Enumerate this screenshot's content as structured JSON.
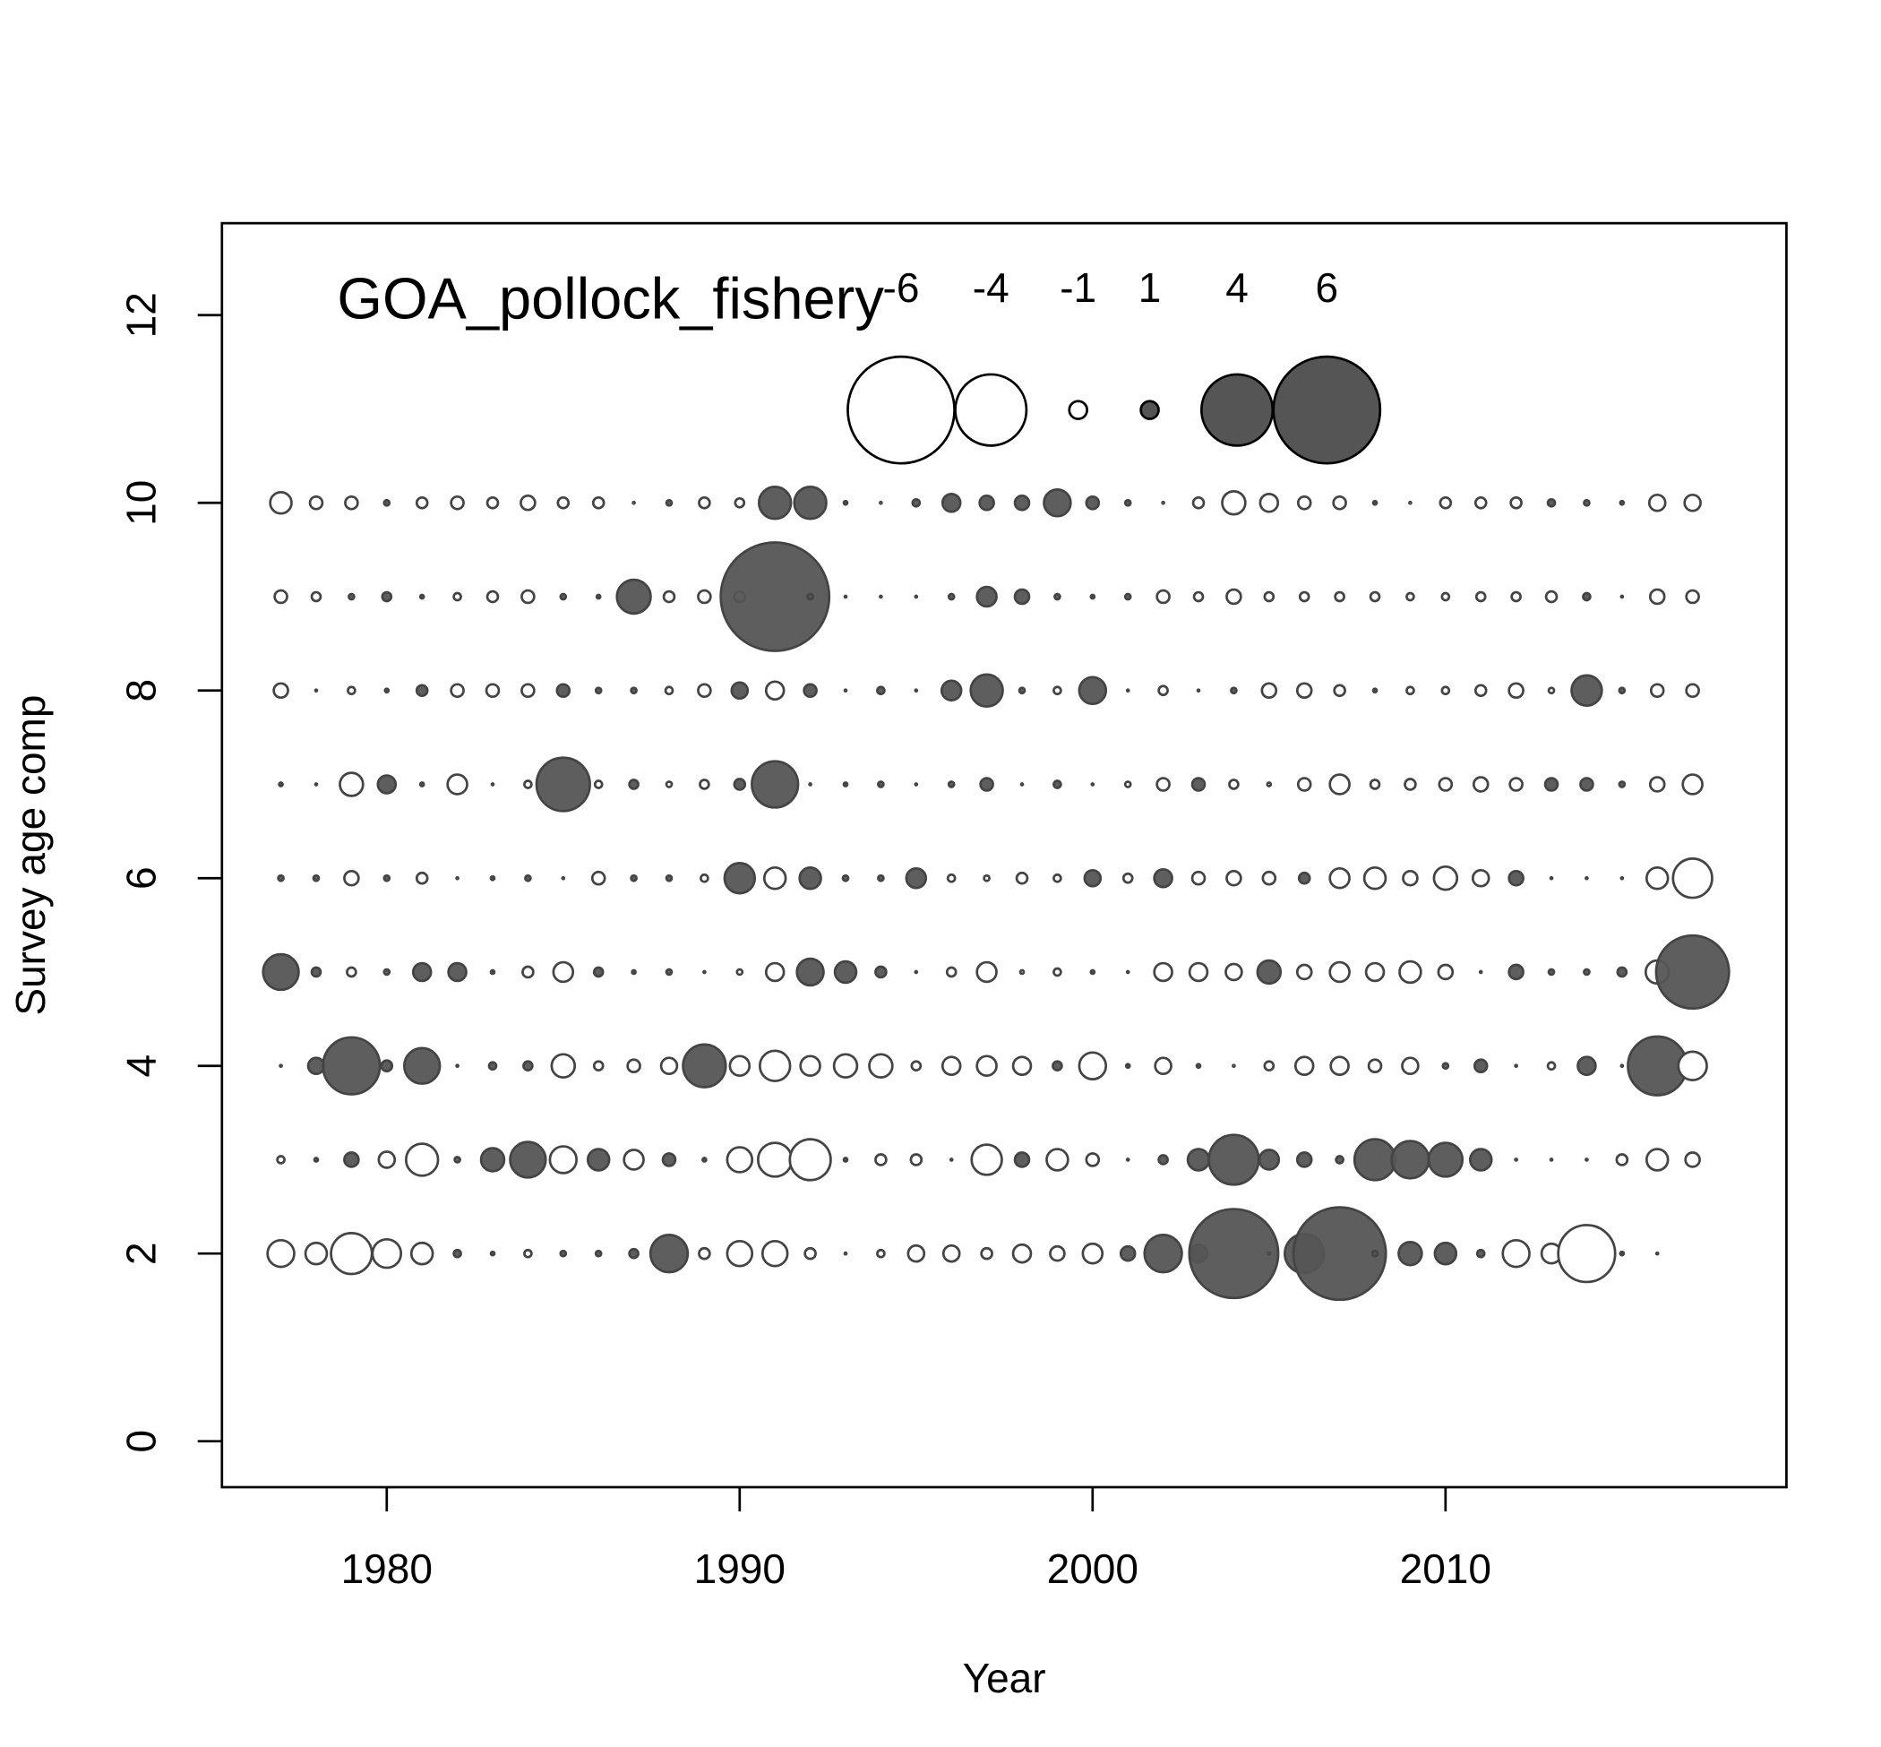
{
  "chart_data": {
    "type": "bubble",
    "title": "GOA_pollock_fishery",
    "xlabel": "Year",
    "ylabel": "Survey age comp",
    "xlim": [
      1975.33,
      2019.66
    ],
    "ylim": [
      -0.49,
      12.98
    ],
    "xticks": [
      1980,
      1990,
      2000,
      2010
    ],
    "yticks": [
      0,
      2,
      4,
      6,
      8,
      10,
      12
    ],
    "positive_color": "#555555",
    "negative_color": "#ffffff",
    "legend_values": [
      -6,
      -4,
      -1,
      1,
      4,
      6
    ],
    "x": [
      1977,
      1978,
      1979,
      1980,
      1981,
      1982,
      1983,
      1984,
      1985,
      1986,
      1987,
      1988,
      1989,
      1990,
      1991,
      1992,
      1993,
      1994,
      1995,
      1996,
      1997,
      1998,
      1999,
      2000,
      2001,
      2002,
      2003,
      2004,
      2005,
      2006,
      2007,
      2008,
      2009,
      2010,
      2011,
      2012,
      2013,
      2014,
      2015,
      2016,
      2017
    ],
    "ages": [
      2,
      3,
      4,
      5,
      6,
      7,
      8,
      9,
      10
    ],
    "residuals": [
      [
        -1.5,
        -1.2,
        -2.3,
        -1.6,
        -1.2,
        0.4,
        0.2,
        -0.4,
        0.3,
        0.3,
        0.5,
        2.1,
        -0.6,
        -1.4,
        -1.4,
        -0.6,
        0.1,
        -0.4,
        -0.9,
        -0.9,
        -0.6,
        -1.0,
        -0.8,
        -1.1,
        0.8,
        2.1,
        1.0,
        5.0,
        -0.1,
        2.2,
        5.2,
        0.3,
        1.3,
        1.2,
        0.4,
        -1.5,
        -1.1,
        -3.2,
        0.2,
        0.1,
        null
      ],
      [
        -0.4,
        0.2,
        0.8,
        -0.9,
        -1.8,
        0.3,
        1.3,
        2.0,
        -1.5,
        1.2,
        -1.1,
        0.7,
        0.2,
        -1.4,
        -1.9,
        -2.3,
        0.2,
        -0.6,
        -0.6,
        0.1,
        -1.7,
        0.8,
        -1.2,
        -0.7,
        0.1,
        0.5,
        1.2,
        2.8,
        1.1,
        0.8,
        0.4,
        2.3,
        2.1,
        1.9,
        1.2,
        0.1,
        0.1,
        0.1,
        -0.6,
        -1.2,
        -0.8
      ],
      [
        0.1,
        0.9,
        3.2,
        0.6,
        2.0,
        0.1,
        0.4,
        0.5,
        -1.3,
        -0.5,
        -0.7,
        -0.9,
        2.4,
        -1.1,
        -1.7,
        -1.1,
        -1.3,
        -1.3,
        -0.5,
        -1.0,
        -1.1,
        -1.0,
        0.5,
        -1.5,
        0.2,
        -0.9,
        0.2,
        -0.1,
        -0.5,
        -1.0,
        -1.0,
        -0.7,
        -0.9,
        0.3,
        0.7,
        0.1,
        -0.4,
        1.0,
        0.1,
        3.3,
        -1.6
      ],
      [
        2.0,
        0.5,
        -0.5,
        0.3,
        1.0,
        1.0,
        0.2,
        -0.6,
        -1.1,
        0.5,
        0.2,
        0.3,
        0.1,
        -0.3,
        -1.0,
        1.5,
        1.2,
        0.6,
        0.1,
        -0.5,
        -1.1,
        -0.2,
        -0.4,
        0.2,
        0.1,
        -1.0,
        -1.0,
        -0.9,
        1.3,
        -0.8,
        -1.1,
        -1.0,
        -1.2,
        -0.8,
        0.1,
        0.8,
        0.3,
        0.3,
        0.5,
        -1.3,
        4.1
      ],
      [
        0.3,
        0.3,
        -0.8,
        0.3,
        -0.6,
        0.1,
        0.2,
        0.3,
        0.1,
        -0.7,
        0.3,
        0.3,
        -0.4,
        1.7,
        -1.2,
        1.2,
        0.3,
        0.3,
        1.1,
        -0.4,
        -0.3,
        -0.6,
        -0.4,
        0.9,
        -0.5,
        1.0,
        -0.7,
        -0.8,
        -0.7,
        0.6,
        -1.1,
        -1.2,
        -0.8,
        -1.3,
        -0.9,
        0.8,
        0.1,
        0.1,
        0.1,
        -1.2,
        -2.2
      ],
      [
        0.2,
        0.1,
        -1.3,
        1.0,
        0.2,
        -1.1,
        0.1,
        -0.4,
        3.0,
        -0.4,
        0.5,
        -0.3,
        -0.5,
        0.6,
        2.6,
        0.1,
        0.2,
        0.3,
        0.1,
        0.3,
        0.7,
        0.1,
        0.4,
        0.1,
        -0.3,
        -0.7,
        0.7,
        -0.5,
        -0.2,
        -0.7,
        -1.1,
        -0.5,
        -0.6,
        -0.7,
        -0.8,
        -0.7,
        0.7,
        0.7,
        0.3,
        -0.8,
        -1.1
      ],
      [
        -0.8,
        0.1,
        -0.4,
        0.2,
        0.6,
        -0.7,
        -0.7,
        -0.7,
        0.7,
        0.3,
        0.3,
        -0.4,
        -0.7,
        0.9,
        -1.0,
        0.7,
        0.1,
        0.4,
        0.1,
        1.1,
        1.8,
        0.3,
        -0.4,
        1.5,
        0.1,
        -0.5,
        0.1,
        0.3,
        -0.8,
        -0.8,
        -0.6,
        0.2,
        -0.4,
        -0.4,
        -0.6,
        -0.8,
        -0.3,
        1.7,
        0.3,
        -0.7,
        -0.7
      ],
      [
        -0.7,
        -0.5,
        0.3,
        0.5,
        0.2,
        -0.4,
        -0.6,
        -0.7,
        0.3,
        0.2,
        1.9,
        -0.6,
        -0.7,
        -0.6,
        6.1,
        0.3,
        0.1,
        0.1,
        0.1,
        0.3,
        1.1,
        0.8,
        0.3,
        0.2,
        0.3,
        -0.7,
        -0.5,
        -0.8,
        -0.5,
        -0.5,
        -0.5,
        -0.5,
        -0.4,
        -0.4,
        -0.5,
        -0.5,
        -0.6,
        0.4,
        0.1,
        -0.8,
        -0.7
      ],
      [
        -1.2,
        -0.7,
        -0.7,
        0.3,
        -0.6,
        -0.7,
        -0.6,
        -0.8,
        -0.6,
        -0.6,
        -0.1,
        0.3,
        -0.6,
        -0.5,
        1.8,
        1.8,
        0.2,
        -0.1,
        0.4,
        1.0,
        0.8,
        0.8,
        1.5,
        0.7,
        0.3,
        -0.1,
        -0.6,
        -1.3,
        -1.0,
        -0.7,
        -0.7,
        0.2,
        -0.1,
        -0.6,
        -0.6,
        -0.6,
        0.4,
        0.3,
        0.2,
        -0.9,
        -0.9
      ]
    ]
  }
}
